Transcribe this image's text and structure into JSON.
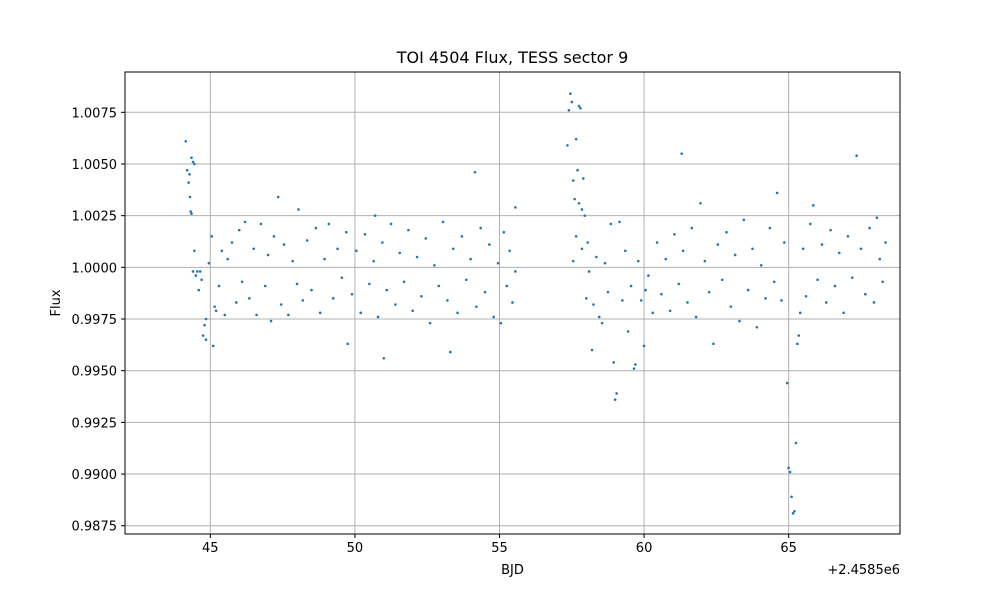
{
  "chart_data": {
    "type": "scatter",
    "title": "TOI 4504 Flux, TESS sector 9",
    "xlabel": "BJD",
    "ylabel": "Flux",
    "x_offset_label": "+2.4585e6",
    "x_offset": 2458500,
    "xlim": [
      2458542.05,
      2458568.85
    ],
    "ylim": [
      0.9871,
      1.00945
    ],
    "grid": true,
    "marker_color": "#1f77b4",
    "x_ticks": [
      2458545,
      2458550,
      2458555,
      2458560,
      2458565
    ],
    "x_tick_labels": [
      "45",
      "50",
      "55",
      "60",
      "65"
    ],
    "y_ticks": [
      0.9875,
      0.99,
      0.9925,
      0.995,
      0.9975,
      1.0,
      1.0025,
      1.005,
      1.0075
    ],
    "y_tick_labels": [
      "0.9875",
      "0.9900",
      "0.9925",
      "0.9950",
      "0.9975",
      "1.0000",
      "1.0025",
      "1.0050",
      "1.0075"
    ],
    "series": [
      {
        "points": [
          [
            2458544.15,
            1.0061
          ],
          [
            2458544.2,
            1.0047
          ],
          [
            2458544.25,
            1.0041
          ],
          [
            2458544.28,
            1.0045
          ],
          [
            2458544.3,
            1.0034
          ],
          [
            2458544.32,
            1.0027
          ],
          [
            2458544.35,
            1.0026
          ],
          [
            2458544.35,
            1.0053
          ],
          [
            2458544.4,
            1.0051
          ],
          [
            2458544.45,
            1.005
          ],
          [
            2458544.4,
            0.9998
          ],
          [
            2458544.5,
            0.9996
          ],
          [
            2458544.45,
            1.0008
          ],
          [
            2458544.55,
            0.9998
          ],
          [
            2458544.6,
            0.9989
          ],
          [
            2458544.65,
            0.9998
          ],
          [
            2458544.7,
            0.9994
          ],
          [
            2458544.75,
            0.9967
          ],
          [
            2458544.8,
            0.9972
          ],
          [
            2458544.85,
            0.9965
          ],
          [
            2458544.85,
            0.9975
          ],
          [
            2458544.95,
            1.0002
          ],
          [
            2458545.05,
            1.0015
          ],
          [
            2458545.1,
            0.9962
          ],
          [
            2458545.15,
            0.9981
          ],
          [
            2458545.2,
            0.9979
          ],
          [
            2458545.3,
            0.9991
          ],
          [
            2458545.4,
            1.0008
          ],
          [
            2458545.5,
            0.9977
          ],
          [
            2458545.6,
            1.0004
          ],
          [
            2458545.75,
            1.0012
          ],
          [
            2458545.9,
            0.9983
          ],
          [
            2458546.0,
            1.0018
          ],
          [
            2458546.1,
            0.9993
          ],
          [
            2458546.2,
            1.0022
          ],
          [
            2458546.35,
            0.9985
          ],
          [
            2458546.5,
            1.0009
          ],
          [
            2458546.6,
            0.9977
          ],
          [
            2458546.75,
            1.0021
          ],
          [
            2458546.9,
            0.9991
          ],
          [
            2458547.0,
            1.0006
          ],
          [
            2458547.1,
            0.9974
          ],
          [
            2458547.2,
            1.0015
          ],
          [
            2458547.35,
            1.0034
          ],
          [
            2458547.45,
            0.9982
          ],
          [
            2458547.55,
            1.0011
          ],
          [
            2458547.7,
            0.9977
          ],
          [
            2458547.85,
            1.0003
          ],
          [
            2458548.0,
            0.9992
          ],
          [
            2458548.05,
            1.0028
          ],
          [
            2458548.2,
            0.9984
          ],
          [
            2458548.35,
            1.0013
          ],
          [
            2458548.5,
            0.9989
          ],
          [
            2458548.65,
            1.0019
          ],
          [
            2458548.8,
            0.9978
          ],
          [
            2458548.95,
            1.0004
          ],
          [
            2458549.1,
            1.0021
          ],
          [
            2458549.25,
            0.9985
          ],
          [
            2458549.4,
            1.0009
          ],
          [
            2458549.55,
            0.9995
          ],
          [
            2458549.7,
            1.0017
          ],
          [
            2458549.75,
            0.9963
          ],
          [
            2458549.9,
            0.9987
          ],
          [
            2458550.05,
            1.0008
          ],
          [
            2458550.2,
            0.9978
          ],
          [
            2458550.35,
            1.0016
          ],
          [
            2458550.5,
            0.9992
          ],
          [
            2458550.65,
            1.0003
          ],
          [
            2458550.7,
            1.0025
          ],
          [
            2458550.8,
            0.9976
          ],
          [
            2458550.95,
            1.0012
          ],
          [
            2458551.0,
            0.9956
          ],
          [
            2458551.1,
            0.9989
          ],
          [
            2458551.25,
            1.0021
          ],
          [
            2458551.4,
            0.9982
          ],
          [
            2458551.55,
            1.0007
          ],
          [
            2458551.7,
            0.9993
          ],
          [
            2458551.85,
            1.0018
          ],
          [
            2458552.0,
            0.9979
          ],
          [
            2458552.15,
            1.0005
          ],
          [
            2458552.3,
            0.9986
          ],
          [
            2458552.45,
            1.0014
          ],
          [
            2458552.6,
            0.9973
          ],
          [
            2458552.75,
            1.0001
          ],
          [
            2458552.9,
            0.9991
          ],
          [
            2458553.05,
            1.0022
          ],
          [
            2458553.2,
            0.9984
          ],
          [
            2458553.3,
            0.9959
          ],
          [
            2458553.4,
            1.0009
          ],
          [
            2458553.55,
            0.9978
          ],
          [
            2458553.7,
            1.0015
          ],
          [
            2458553.85,
            0.9994
          ],
          [
            2458554.0,
            1.0004
          ],
          [
            2458554.15,
            1.0046
          ],
          [
            2458554.2,
            0.9981
          ],
          [
            2458554.35,
            1.0019
          ],
          [
            2458554.5,
            0.9988
          ],
          [
            2458554.65,
            1.0011
          ],
          [
            2458554.8,
            0.9976
          ],
          [
            2458554.95,
            1.0002
          ],
          [
            2458555.05,
            0.9973
          ],
          [
            2458555.15,
            1.0017
          ],
          [
            2458555.25,
            0.9991
          ],
          [
            2458555.35,
            1.0008
          ],
          [
            2458555.45,
            0.9983
          ],
          [
            2458555.55,
            1.0029
          ],
          [
            2458555.55,
            0.9998
          ],
          [
            2458557.35,
            1.0059
          ],
          [
            2458557.4,
            1.0076
          ],
          [
            2458557.45,
            1.0084
          ],
          [
            2458557.5,
            1.008
          ],
          [
            2458557.55,
            1.0042
          ],
          [
            2458557.6,
            1.0033
          ],
          [
            2458557.65,
            1.0062
          ],
          [
            2458557.7,
            1.0047
          ],
          [
            2458557.75,
            1.0078
          ],
          [
            2458557.75,
            1.0031
          ],
          [
            2458557.8,
            1.0077
          ],
          [
            2458557.85,
            1.0028
          ],
          [
            2458557.9,
            1.0043
          ],
          [
            2458557.95,
            1.0025
          ],
          [
            2458557.55,
            1.0003
          ],
          [
            2458557.65,
            1.0015
          ],
          [
            2458557.85,
            1.0009
          ],
          [
            2458558.0,
            0.9985
          ],
          [
            2458558.05,
            1.0012
          ],
          [
            2458558.1,
            0.9998
          ],
          [
            2458558.2,
            0.996
          ],
          [
            2458558.25,
            0.9982
          ],
          [
            2458558.35,
            1.0005
          ],
          [
            2458558.45,
            0.9976
          ],
          [
            2458558.55,
            0.9973
          ],
          [
            2458558.65,
            1.0002
          ],
          [
            2458558.75,
            0.9988
          ],
          [
            2458558.85,
            1.0021
          ],
          [
            2458558.95,
            0.9954
          ],
          [
            2458559.0,
            0.9936
          ],
          [
            2458559.05,
            0.9939
          ],
          [
            2458559.15,
            1.0022
          ],
          [
            2458559.25,
            0.9984
          ],
          [
            2458559.35,
            1.0008
          ],
          [
            2458559.45,
            0.9969
          ],
          [
            2458559.55,
            0.9991
          ],
          [
            2458559.65,
            0.9951
          ],
          [
            2458559.7,
            0.9953
          ],
          [
            2458559.8,
            1.0003
          ],
          [
            2458559.9,
            0.9984
          ],
          [
            2458560.0,
            0.9962
          ],
          [
            2458560.05,
            0.9989
          ],
          [
            2458560.15,
            0.9996
          ],
          [
            2458560.3,
            0.9978
          ],
          [
            2458560.45,
            1.0012
          ],
          [
            2458560.6,
            0.9987
          ],
          [
            2458560.75,
            1.0004
          ],
          [
            2458560.9,
            0.9979
          ],
          [
            2458561.05,
            1.0016
          ],
          [
            2458561.2,
            0.9992
          ],
          [
            2458561.3,
            1.0055
          ],
          [
            2458561.35,
            1.0008
          ],
          [
            2458561.5,
            0.9983
          ],
          [
            2458561.65,
            1.0019
          ],
          [
            2458561.8,
            0.9976
          ],
          [
            2458561.95,
            1.0031
          ],
          [
            2458562.1,
            1.0003
          ],
          [
            2458562.25,
            0.9988
          ],
          [
            2458562.4,
            0.9963
          ],
          [
            2458562.55,
            1.0011
          ],
          [
            2458562.7,
            0.9994
          ],
          [
            2458562.85,
            1.0017
          ],
          [
            2458563.0,
            0.9981
          ],
          [
            2458563.15,
            1.0006
          ],
          [
            2458563.3,
            0.9974
          ],
          [
            2458563.45,
            1.0023
          ],
          [
            2458563.6,
            0.9989
          ],
          [
            2458563.75,
            1.0009
          ],
          [
            2458563.9,
            0.9971
          ],
          [
            2458564.05,
            1.0001
          ],
          [
            2458564.2,
            0.9985
          ],
          [
            2458564.35,
            1.0019
          ],
          [
            2458564.5,
            0.9993
          ],
          [
            2458564.6,
            1.0036
          ],
          [
            2458564.75,
            0.9984
          ],
          [
            2458564.85,
            1.0012
          ],
          [
            2458564.95,
            0.9944
          ],
          [
            2458565.0,
            0.9903
          ],
          [
            2458565.05,
            0.9901
          ],
          [
            2458565.1,
            0.9889
          ],
          [
            2458565.15,
            0.9881
          ],
          [
            2458565.2,
            0.9882
          ],
          [
            2458565.25,
            0.9915
          ],
          [
            2458565.3,
            0.9963
          ],
          [
            2458565.35,
            0.9967
          ],
          [
            2458565.4,
            0.9978
          ],
          [
            2458565.5,
            1.0009
          ],
          [
            2458565.6,
            0.9986
          ],
          [
            2458565.75,
            1.0021
          ],
          [
            2458565.85,
            1.003
          ],
          [
            2458566.0,
            0.9994
          ],
          [
            2458566.15,
            1.0011
          ],
          [
            2458566.3,
            0.9983
          ],
          [
            2458566.45,
            1.0018
          ],
          [
            2458566.6,
            0.9991
          ],
          [
            2458566.75,
            1.0007
          ],
          [
            2458566.9,
            0.9978
          ],
          [
            2458567.05,
            1.0015
          ],
          [
            2458567.2,
            0.9995
          ],
          [
            2458567.35,
            1.0054
          ],
          [
            2458567.5,
            1.0009
          ],
          [
            2458567.65,
            0.9987
          ],
          [
            2458567.8,
            1.0019
          ],
          [
            2458567.95,
            0.9983
          ],
          [
            2458568.05,
            1.0024
          ],
          [
            2458568.15,
            1.0004
          ],
          [
            2458568.25,
            0.9993
          ],
          [
            2458568.35,
            1.0012
          ]
        ]
      }
    ]
  }
}
